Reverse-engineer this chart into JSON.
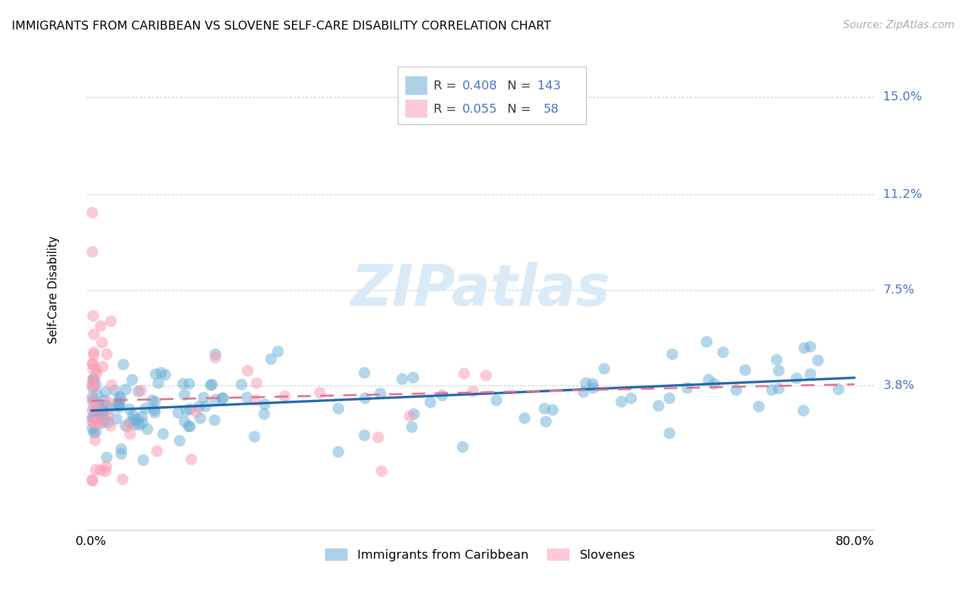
{
  "title": "IMMIGRANTS FROM CARIBBEAN VS SLOVENE SELF-CARE DISABILITY CORRELATION CHART",
  "source": "Source: ZipAtlas.com",
  "ylabel": "Self-Care Disability",
  "ytick_vals": [
    0.038,
    0.075,
    0.112,
    0.15
  ],
  "ytick_labels": [
    "3.8%",
    "7.5%",
    "11.2%",
    "15.0%"
  ],
  "xtick_labels": [
    "0.0%",
    "80.0%"
  ],
  "xlim_lo": -0.005,
  "xlim_hi": 0.82,
  "ylim_lo": -0.018,
  "ylim_hi": 0.168,
  "caribbean_color": "#6baed6",
  "slovene_color": "#fa9fb5",
  "caribbean_line_color": "#2166ac",
  "slovene_line_color": "#e07090",
  "caribbean_R": 0.408,
  "caribbean_N": 143,
  "slovene_R": 0.055,
  "slovene_N": 58,
  "legend_R_N_color": "#4472c4",
  "legend_label_color": "#333333",
  "watermark_color": "#daeaf7",
  "title_fontsize": 12.5,
  "source_fontsize": 11,
  "tick_fontsize": 13,
  "ylabel_fontsize": 12,
  "legend_fontsize": 13,
  "watermark_fontsize": 60
}
